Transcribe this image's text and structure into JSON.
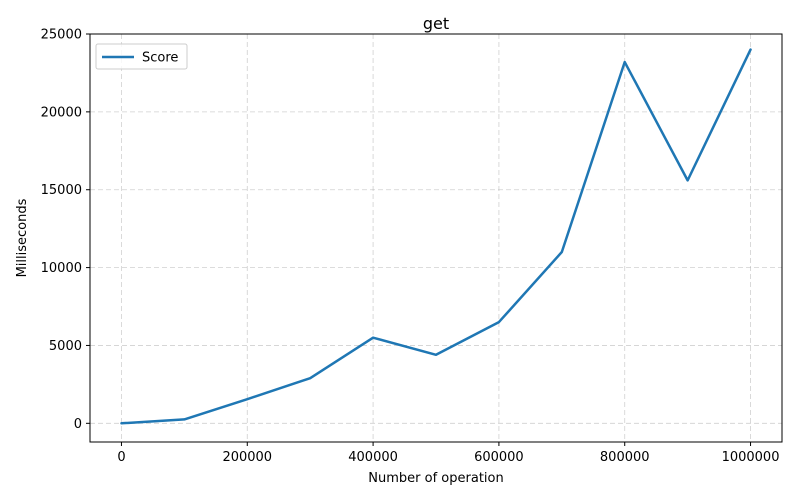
{
  "chart_data": {
    "type": "line",
    "title": "get",
    "xlabel": "Number of operation",
    "ylabel": "Milliseconds",
    "x": [
      0,
      100000,
      200000,
      300000,
      400000,
      500000,
      600000,
      700000,
      800000,
      900000,
      1000000
    ],
    "series": [
      {
        "name": "Score",
        "color": "#1f77b4",
        "values": [
          0,
          250,
          1550,
          2900,
          5500,
          4400,
          6500,
          11000,
          23200,
          15600,
          24000
        ]
      }
    ],
    "xlim": [
      -50000,
      1050000
    ],
    "ylim": [
      -1200,
      25000
    ],
    "xticks": [
      0,
      200000,
      400000,
      600000,
      800000,
      1000000
    ],
    "xtick_labels": [
      "0",
      "200000",
      "400000",
      "600000",
      "800000",
      "1000000"
    ],
    "yticks": [
      0,
      5000,
      10000,
      15000,
      20000,
      25000
    ],
    "ytick_labels": [
      "0",
      "5000",
      "10000",
      "15000",
      "20000",
      "25000"
    ],
    "grid": true,
    "legend_position": "upper-left"
  }
}
